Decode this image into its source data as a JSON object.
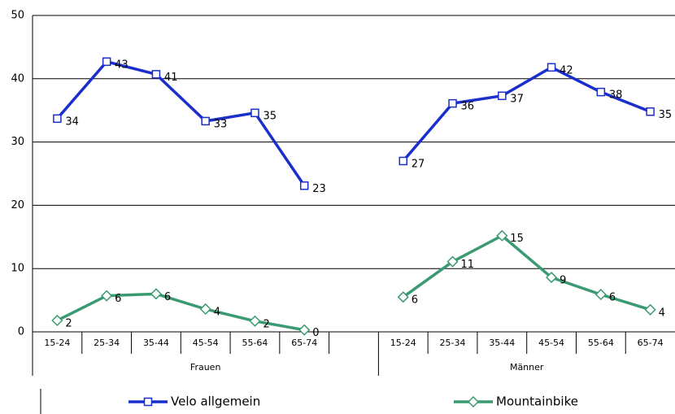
{
  "chart_data": {
    "type": "line",
    "categories": [
      "15-24",
      "25-34",
      "35-44",
      "45-54",
      "55-64",
      "65-74",
      null,
      "15-24",
      "25-34",
      "35-44",
      "45-54",
      "55-64",
      "65-74"
    ],
    "groups": [
      "Frauen",
      "Männer"
    ],
    "series": [
      {
        "name": "Velo allgemein",
        "color": "#1a2ecc",
        "marker": "square",
        "values": [
          33.7,
          42.7,
          40.7,
          33.3,
          34.6,
          23.1,
          null,
          27.0,
          36.1,
          37.3,
          41.8,
          37.9,
          34.8
        ],
        "value_labels": [
          "34",
          "43",
          "41",
          "33",
          "35",
          "23",
          null,
          "27",
          "36",
          "37",
          "42",
          "38",
          "35"
        ]
      },
      {
        "name": "Mountainbike",
        "color": "#3a9a72",
        "marker": "diamond",
        "values": [
          1.8,
          5.7,
          6.0,
          3.6,
          1.7,
          0.3,
          null,
          5.5,
          11.1,
          15.2,
          8.6,
          5.9,
          3.5
        ],
        "value_labels": [
          "2",
          "6",
          "6",
          "4",
          "2",
          "0",
          null,
          "6",
          "11",
          "15",
          "9",
          "6",
          "4"
        ]
      }
    ],
    "ylim": [
      0,
      50
    ],
    "yticks": [
      0,
      10,
      20,
      30,
      40,
      50
    ],
    "grid": true,
    "legend": "bottom"
  }
}
